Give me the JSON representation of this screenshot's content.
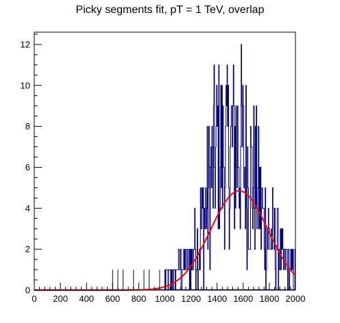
{
  "chart_data": {
    "type": "histogram",
    "title": "Picky segments fit, pT = 1 TeV, overlap",
    "xlabel": "",
    "ylabel": "",
    "xlim": [
      0,
      2000
    ],
    "ylim": [
      0,
      12.6
    ],
    "x_ticks": [
      0,
      200,
      400,
      600,
      800,
      1000,
      1200,
      1400,
      1600,
      1800,
      2000
    ],
    "y_ticks": [
      0,
      2,
      4,
      6,
      8,
      10,
      12
    ],
    "grid": false,
    "legend": "none",
    "series": [
      {
        "kind": "histogram",
        "color": "#000080",
        "bin_width": 4,
        "isolated_entries": [
          {
            "x": 12,
            "y": 0
          },
          {
            "x": 600,
            "y": 1
          },
          {
            "x": 640,
            "y": 1
          },
          {
            "x": 680,
            "y": 1
          },
          {
            "x": 760,
            "y": 1
          },
          {
            "x": 840,
            "y": 1
          },
          {
            "x": 880,
            "y": 1
          },
          {
            "x": 960,
            "y": 1
          }
        ],
        "envelope": [
          {
            "x": 1000,
            "low": 0,
            "high": 1
          },
          {
            "x": 1100,
            "low": 0,
            "high": 2
          },
          {
            "x": 1200,
            "low": 0,
            "high": 3
          },
          {
            "x": 1280,
            "low": 0,
            "high": 6
          },
          {
            "x": 1340,
            "low": 1,
            "high": 9
          },
          {
            "x": 1400,
            "low": 2,
            "high": 12
          },
          {
            "x": 1460,
            "low": 2,
            "high": 11
          },
          {
            "x": 1520,
            "low": 2,
            "high": 12
          },
          {
            "x": 1580,
            "low": 2,
            "high": 12
          },
          {
            "x": 1640,
            "low": 1,
            "high": 10
          },
          {
            "x": 1700,
            "low": 1,
            "high": 9
          },
          {
            "x": 1760,
            "low": 0,
            "high": 6
          },
          {
            "x": 1820,
            "low": 0,
            "high": 5
          },
          {
            "x": 1900,
            "low": 0,
            "high": 3
          },
          {
            "x": 1960,
            "low": 0,
            "high": 2
          },
          {
            "x": 2000,
            "low": 0,
            "high": 2
          }
        ]
      },
      {
        "kind": "fit",
        "shape": "gaussian",
        "color": "#ff0000",
        "amplitude": 4.85,
        "mean": 1570,
        "sigma": 220
      }
    ]
  }
}
